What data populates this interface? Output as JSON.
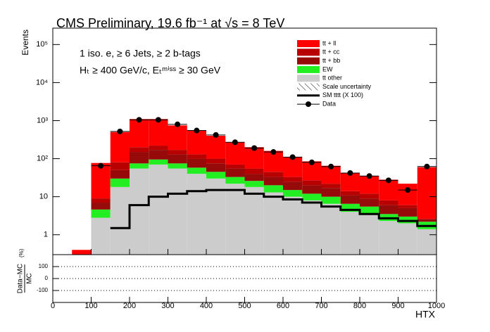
{
  "chart_data": {
    "type": "stacked_histogram",
    "title": "CMS Preliminary, 19.6 fb⁻¹ at √s = 8 TeV",
    "annotations": [
      "1 iso. e,  ≥ 6 Jets, ≥ 2 b-tags",
      "Hₜ ≥ 400 GeV/c, Eₜᵐⁱˢˢ ≥ 30 GeV"
    ],
    "xlabel": "HTX",
    "ylabel": "Events",
    "log_y": true,
    "bins": [
      0,
      50,
      100,
      150,
      200,
      250,
      300,
      350,
      400,
      450,
      500,
      550,
      600,
      650,
      700,
      750,
      800,
      850,
      900,
      950,
      1000
    ],
    "xlim": [
      0,
      1000
    ],
    "xticks": [
      0,
      100,
      200,
      300,
      400,
      500,
      600,
      700,
      800,
      900,
      1000
    ],
    "ylim": [
      0.3,
      270000
    ],
    "yticks": [
      1,
      10,
      {
        "value": 100,
        "label": "10²"
      },
      {
        "value": 1000,
        "label": "10³"
      },
      {
        "value": 10000,
        "label": "10⁴"
      },
      {
        "value": 100000,
        "label": "10⁵"
      }
    ],
    "series": [
      {
        "name": "tt + ll",
        "color": "#ff0000",
        "values": [
          null,
          0.4,
          68,
          420,
          900,
          880,
          580,
          420,
          300,
          200,
          145,
          115,
          77,
          58,
          43,
          28,
          23,
          20,
          16,
          57
        ]
      },
      {
        "name": "tt + cc",
        "color": "#b80000",
        "values": [
          null,
          null,
          2,
          30,
          50,
          50,
          40,
          30,
          25,
          15,
          15,
          12,
          8,
          7,
          5,
          3,
          3,
          2,
          1,
          null
        ]
      },
      {
        "name": "tt + bb",
        "color": "#960a0a",
        "values": [
          null,
          null,
          2.4,
          20,
          75,
          75,
          55,
          42,
          30,
          22,
          14,
          13,
          10,
          8,
          7,
          4.5,
          3.5,
          2.5,
          2,
          0.4
        ]
      },
      {
        "name": "EW",
        "color": "#22ee22",
        "values": [
          null,
          null,
          1.8,
          12,
          20,
          25,
          20,
          18,
          15,
          11,
          8,
          7,
          5,
          4,
          3.5,
          2.5,
          2,
          1.2,
          1,
          0.8
        ]
      },
      {
        "name": "tt other",
        "color": "#cccccc",
        "values": [
          null,
          null,
          2.8,
          18,
          55,
          70,
          55,
          40,
          30,
          22,
          18,
          13,
          10,
          8,
          6.5,
          4,
          3.5,
          2.3,
          2,
          1.4
        ]
      }
    ],
    "uncertainty": {
      "name": "Scale uncertainty"
    },
    "line": {
      "name": "SM tttt (X 100)",
      "color": "#000000",
      "values": [
        null,
        null,
        null,
        1.5,
        6,
        10,
        12,
        14,
        15,
        15,
        12,
        10,
        8.5,
        7,
        5.5,
        4.5,
        3.5,
        2.7,
        2.3,
        1.7
      ]
    },
    "data": {
      "name": "Data",
      "color": "#000000",
      "values": [
        null,
        null,
        65,
        520,
        1050,
        1050,
        800,
        550,
        420,
        270,
        190,
        150,
        110,
        80,
        62,
        42,
        35,
        27,
        15,
        62
      ]
    },
    "ratio": {
      "ylabel_top": "Data−MC",
      "ylabel_bottom": "MC",
      "ylabel_unit": "(%)",
      "ylim": [
        -200,
        200
      ],
      "yticks": [
        -100,
        0,
        100
      ],
      "grid": true
    }
  }
}
